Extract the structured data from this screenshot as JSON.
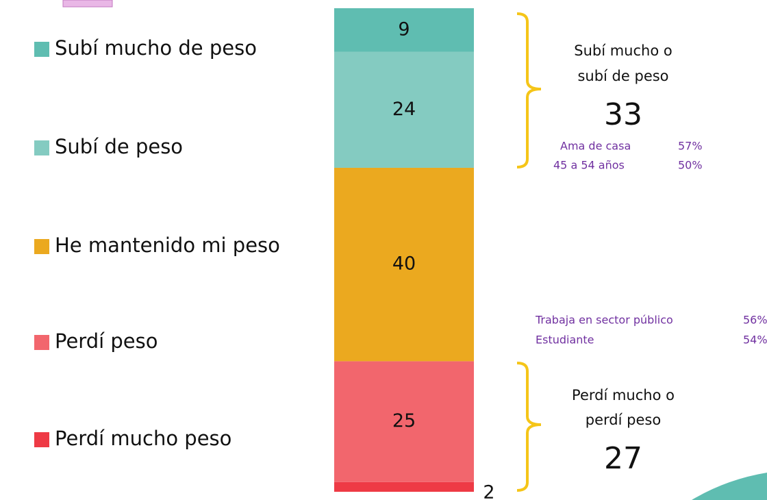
{
  "chart_data": {
    "type": "stacked_bar",
    "series": [
      {
        "name": "Subí mucho de peso",
        "color": "#5fbdb1",
        "values": [
          9
        ]
      },
      {
        "name": "Subí de peso",
        "color": "#84cbc1",
        "values": [
          24
        ]
      },
      {
        "name": "He mantenido mi peso",
        "color": "#eba91f",
        "values": [
          40
        ]
      },
      {
        "name": "Perdí peso",
        "color": "#f2666d",
        "values": [
          25
        ]
      },
      {
        "name": "Perdí mucho peso",
        "color": "#ee3a45",
        "values": [
          2
        ]
      }
    ],
    "groups": [
      {
        "label": [
          "Subí mucho o",
          "subí de peso"
        ],
        "value": 33,
        "highlights": [
          {
            "label": "Ama de casa",
            "value": "57%"
          },
          {
            "label": "45 a 54 años",
            "value": "50%"
          }
        ]
      },
      {
        "label": [
          "Perdí mucho o",
          "perdí peso"
        ],
        "value": 27,
        "highlights": [
          {
            "label": "Trabaja en sector público",
            "value": "56%"
          },
          {
            "label": "Estudiante",
            "value": "54%"
          }
        ]
      }
    ]
  }
}
